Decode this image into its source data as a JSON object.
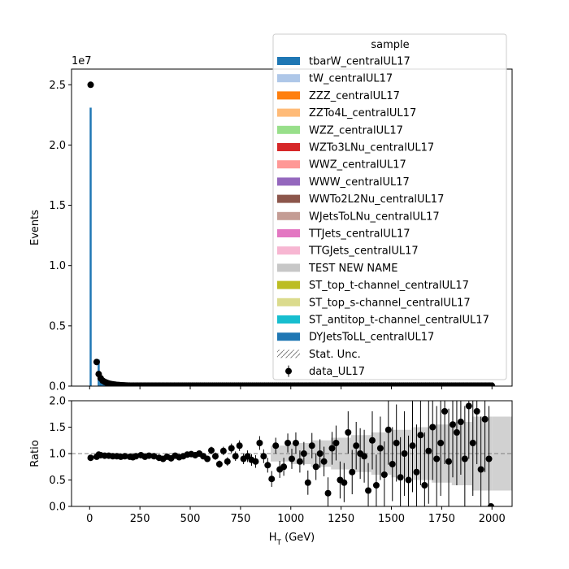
{
  "chart_data": {
    "type": "bar",
    "main": {
      "ylabel": "Events",
      "y_exponent_label": "1e7",
      "ylim": [
        0,
        26300000.0
      ],
      "y_ticks": [
        0.0,
        0.5,
        1.0,
        1.5,
        2.0,
        2.5
      ],
      "y_tick_labels": [
        "0.0",
        "0.5",
        "1.0",
        "1.5",
        "2.0",
        "2.5"
      ],
      "mc_total_bins": [
        [
          0,
          23100000
        ],
        [
          10,
          20000
        ],
        [
          20,
          10000
        ],
        [
          30,
          8000
        ],
        [
          40,
          2200000
        ],
        [
          50,
          800000
        ],
        [
          60,
          550000
        ],
        [
          70,
          420000
        ],
        [
          80,
          320000
        ],
        [
          90,
          250000
        ],
        [
          100,
          200000
        ],
        [
          110,
          160000
        ],
        [
          120,
          130000
        ],
        [
          130,
          110000
        ],
        [
          140,
          90000
        ],
        [
          150,
          75000
        ],
        [
          160,
          65000
        ],
        [
          170,
          55000
        ],
        [
          180,
          48000
        ],
        [
          190,
          42000
        ],
        [
          200,
          36000
        ],
        [
          250,
          20000
        ],
        [
          300,
          12000
        ],
        [
          400,
          6000
        ],
        [
          500,
          3000
        ],
        [
          750,
          1000
        ],
        [
          1000,
          400
        ],
        [
          1500,
          100
        ],
        [
          2000,
          20
        ]
      ],
      "data_points": [
        [
          5,
          25000000
        ],
        [
          35,
          2000000
        ],
        [
          45,
          1000000
        ],
        [
          55,
          650000
        ],
        [
          65,
          450000
        ],
        [
          75,
          350000
        ],
        [
          85,
          280000
        ],
        [
          95,
          220000
        ],
        [
          105,
          180000
        ],
        [
          115,
          150000
        ],
        [
          125,
          125000
        ],
        [
          135,
          105000
        ],
        [
          145,
          90000
        ],
        [
          155,
          75000
        ],
        [
          165,
          65000
        ],
        [
          175,
          56000
        ],
        [
          185,
          49000
        ],
        [
          195,
          43000
        ],
        [
          250,
          25000
        ],
        [
          300,
          15000
        ],
        [
          400,
          7000
        ],
        [
          500,
          3500
        ],
        [
          750,
          1000
        ],
        [
          1000,
          400
        ],
        [
          1500,
          100
        ],
        [
          2000,
          20
        ]
      ]
    },
    "ratio": {
      "ylabel": "Ratio",
      "ylim": [
        0,
        2
      ],
      "y_ticks": [
        0.0,
        0.5,
        1.0,
        1.5,
        2.0
      ],
      "y_tick_labels": [
        "0.0",
        "0.5",
        "1.0",
        "1.5",
        "2.0"
      ],
      "reference_line": 1.0,
      "points": [
        [
          5,
          0.92,
          0.02
        ],
        [
          35,
          0.94,
          0.02
        ],
        [
          45,
          0.98,
          0.02
        ],
        [
          55,
          0.97,
          0.02
        ],
        [
          75,
          0.96,
          0.02
        ],
        [
          95,
          0.96,
          0.02
        ],
        [
          115,
          0.95,
          0.02
        ],
        [
          135,
          0.95,
          0.02
        ],
        [
          155,
          0.94,
          0.02
        ],
        [
          175,
          0.95,
          0.02
        ],
        [
          200,
          0.94,
          0.03
        ],
        [
          215,
          0.93,
          0.03
        ],
        [
          230,
          0.95,
          0.03
        ],
        [
          255,
          0.97,
          0.03
        ],
        [
          275,
          0.94,
          0.03
        ],
        [
          295,
          0.96,
          0.03
        ],
        [
          320,
          0.95,
          0.03
        ],
        [
          345,
          0.92,
          0.03
        ],
        [
          365,
          0.9,
          0.04
        ],
        [
          385,
          0.94,
          0.04
        ],
        [
          405,
          0.91,
          0.04
        ],
        [
          425,
          0.96,
          0.04
        ],
        [
          445,
          0.93,
          0.04
        ],
        [
          465,
          0.95,
          0.04
        ],
        [
          485,
          0.98,
          0.05
        ],
        [
          505,
          0.99,
          0.05
        ],
        [
          525,
          0.97,
          0.05
        ],
        [
          545,
          1.0,
          0.05
        ],
        [
          565,
          0.95,
          0.06
        ],
        [
          585,
          0.9,
          0.06
        ],
        [
          605,
          1.06,
          0.07
        ],
        [
          625,
          0.95,
          0.07
        ],
        [
          645,
          0.8,
          0.07
        ],
        [
          665,
          1.05,
          0.08
        ],
        [
          685,
          0.85,
          0.08
        ],
        [
          705,
          1.1,
          0.09
        ],
        [
          725,
          0.95,
          0.09
        ],
        [
          745,
          1.15,
          0.1
        ],
        [
          765,
          0.9,
          0.1
        ],
        [
          785,
          0.95,
          0.11
        ],
        [
          805,
          0.88,
          0.11
        ],
        [
          825,
          0.85,
          0.12
        ],
        [
          845,
          1.2,
          0.13
        ],
        [
          865,
          0.95,
          0.13
        ],
        [
          885,
          0.78,
          0.14
        ],
        [
          905,
          0.52,
          0.15
        ],
        [
          925,
          1.15,
          0.15
        ],
        [
          945,
          0.7,
          0.16
        ],
        [
          965,
          0.75,
          0.17
        ],
        [
          985,
          1.2,
          0.18
        ],
        [
          1005,
          0.9,
          0.19
        ],
        [
          1025,
          1.2,
          0.2
        ],
        [
          1045,
          0.85,
          0.21
        ],
        [
          1065,
          1.0,
          0.22
        ],
        [
          1085,
          0.45,
          0.23
        ],
        [
          1105,
          1.15,
          0.24
        ],
        [
          1125,
          0.75,
          0.25
        ],
        [
          1145,
          1.0,
          0.27
        ],
        [
          1165,
          0.85,
          0.28
        ],
        [
          1185,
          0.25,
          0.3
        ],
        [
          1205,
          1.1,
          0.31
        ],
        [
          1225,
          1.2,
          0.33
        ],
        [
          1245,
          0.5,
          0.35
        ],
        [
          1265,
          0.45,
          0.37
        ],
        [
          1285,
          1.4,
          0.4
        ],
        [
          1305,
          0.65,
          0.42
        ],
        [
          1325,
          1.15,
          0.45
        ],
        [
          1345,
          1.0,
          0.48
        ],
        [
          1365,
          0.95,
          0.5
        ],
        [
          1385,
          0.3,
          0.52
        ],
        [
          1405,
          1.25,
          0.55
        ],
        [
          1425,
          0.4,
          0.58
        ],
        [
          1445,
          1.1,
          0.6
        ],
        [
          1465,
          0.6,
          0.63
        ],
        [
          1485,
          1.45,
          0.66
        ],
        [
          1505,
          0.8,
          0.7
        ],
        [
          1525,
          1.2,
          0.73
        ],
        [
          1545,
          0.55,
          0.76
        ],
        [
          1565,
          1.0,
          0.8
        ],
        [
          1585,
          0.5,
          0.84
        ],
        [
          1605,
          1.15,
          0.88
        ],
        [
          1625,
          0.65,
          0.9
        ],
        [
          1645,
          1.35,
          0.95
        ],
        [
          1665,
          0.4,
          1.0
        ],
        [
          1685,
          1.05,
          1.0
        ],
        [
          1705,
          1.5,
          1.0
        ],
        [
          1725,
          0.9,
          1.0
        ],
        [
          1745,
          1.2,
          1.0
        ],
        [
          1765,
          1.8,
          1.0
        ],
        [
          1785,
          0.85,
          1.0
        ],
        [
          1805,
          1.55,
          1.0
        ],
        [
          1825,
          1.4,
          1.0
        ],
        [
          1845,
          1.6,
          1.0
        ],
        [
          1865,
          0.9,
          1.0
        ],
        [
          1885,
          1.9,
          1.0
        ],
        [
          1905,
          1.2,
          1.0
        ],
        [
          1925,
          1.8,
          1.0
        ],
        [
          1945,
          0.7,
          1.0
        ],
        [
          1965,
          1.65,
          1.0
        ],
        [
          1985,
          0.9,
          1.0
        ],
        [
          1995,
          0.0,
          0.0
        ]
      ],
      "unc_band": [
        [
          900,
          0.15
        ],
        [
          1000,
          0.2
        ],
        [
          1100,
          0.25
        ],
        [
          1200,
          0.3
        ],
        [
          1300,
          0.35
        ],
        [
          1400,
          0.4
        ],
        [
          1500,
          0.45
        ],
        [
          1600,
          0.5
        ],
        [
          1700,
          0.55
        ],
        [
          1800,
          0.6
        ],
        [
          1900,
          0.7
        ],
        [
          2000,
          0.7
        ]
      ]
    },
    "x": {
      "label": "H",
      "label_sub": "T",
      "label_suffix": " (GeV)",
      "xlim": [
        -90,
        2100
      ],
      "ticks": [
        0,
        250,
        500,
        750,
        1000,
        1250,
        1500,
        1750,
        2000
      ],
      "tick_labels": [
        "0",
        "250",
        "500",
        "750",
        "1000",
        "1250",
        "1500",
        "1750",
        "2000"
      ]
    },
    "legend": {
      "title": "sample",
      "placement": "upper-right",
      "entries": [
        {
          "label": "tbarW_centralUL17",
          "color": "#1f77b4",
          "kind": "fill"
        },
        {
          "label": "tW_centralUL17",
          "color": "#aec7e8",
          "kind": "fill"
        },
        {
          "label": "ZZZ_centralUL17",
          "color": "#ff7f0e",
          "kind": "fill"
        },
        {
          "label": "ZZTo4L_centralUL17",
          "color": "#ffbb78",
          "kind": "fill"
        },
        {
          "label": "WZZ_centralUL17",
          "color": "#98df8a",
          "kind": "fill"
        },
        {
          "label": "WZTo3LNu_centralUL17",
          "color": "#d62728",
          "kind": "fill"
        },
        {
          "label": "WWZ_centralUL17",
          "color": "#ff9896",
          "kind": "fill"
        },
        {
          "label": "WWW_centralUL17",
          "color": "#9467bd",
          "kind": "fill"
        },
        {
          "label": "WWTo2L2Nu_centralUL17",
          "color": "#8c564b",
          "kind": "fill"
        },
        {
          "label": "WJetsToLNu_centralUL17",
          "color": "#c49c94",
          "kind": "fill"
        },
        {
          "label": "TTJets_centralUL17",
          "color": "#e377c2",
          "kind": "fill"
        },
        {
          "label": "TTGJets_centralUL17",
          "color": "#f7b6d2",
          "kind": "fill"
        },
        {
          "label": "TEST NEW NAME",
          "color": "#c7c7c7",
          "kind": "fill"
        },
        {
          "label": "ST_top_t-channel_centralUL17",
          "color": "#bcbd22",
          "kind": "fill"
        },
        {
          "label": "ST_top_s-channel_centralUL17",
          "color": "#dbdb8d",
          "kind": "fill"
        },
        {
          "label": "ST_antitop_t-channel_centralUL17",
          "color": "#17becf",
          "kind": "fill"
        },
        {
          "label": "DYJetsToLL_centralUL17",
          "color": "#1f77b4",
          "kind": "fill"
        },
        {
          "label": "Stat. Unc.",
          "color": "#808080",
          "kind": "hatch"
        },
        {
          "label": "data_UL17",
          "color": "#000000",
          "kind": "errorbar"
        }
      ]
    },
    "colors": {
      "mc_bar": "#1f77b4",
      "data": "#000000",
      "ratio_band": "#bdbdbd",
      "reference_line": "#808080",
      "axis": "#000000"
    }
  }
}
